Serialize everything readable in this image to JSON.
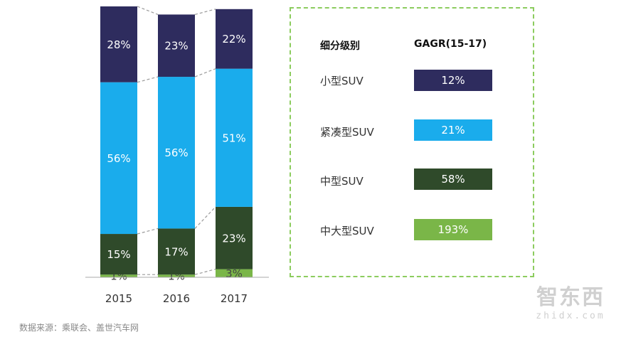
{
  "chart_data": {
    "type": "bar",
    "stacked": true,
    "percent": true,
    "categories": [
      "2015",
      "2016",
      "2017"
    ],
    "series": [
      {
        "name": "中大型SUV",
        "values": [
          1,
          1,
          3
        ],
        "labels": [
          "1%",
          "1%",
          "3%"
        ],
        "color": "#7ab648"
      },
      {
        "name": "中型SUV",
        "values": [
          15,
          17,
          23
        ],
        "labels": [
          "15%",
          "17%",
          "23%"
        ],
        "color": "#2f4a2a"
      },
      {
        "name": "紧凑型SUV",
        "values": [
          56,
          56,
          51
        ],
        "labels": [
          "56%",
          "56%",
          "51%"
        ],
        "color": "#1aacec"
      },
      {
        "name": "小型SUV",
        "values": [
          28,
          23,
          22
        ],
        "labels": [
          "28%",
          "23%",
          "22%"
        ],
        "color": "#2e2c5e"
      }
    ],
    "ylim": [
      0,
      100
    ],
    "grid": false,
    "legend_position": "right"
  },
  "legend": {
    "header_segment": "细分级别",
    "header_cagr": "GAGR(15-17)",
    "rows": [
      {
        "label": "小型SUV",
        "cagr": "12%",
        "color": "#2e2c5e"
      },
      {
        "label": "紧凑型SUV",
        "cagr": "21%",
        "color": "#1aacec"
      },
      {
        "label": "中型SUV",
        "cagr": "58%",
        "color": "#2f4a2a"
      },
      {
        "label": "中大型SUV",
        "cagr": "193%",
        "color": "#7ab648"
      }
    ]
  },
  "source": "数据来源：乘联会、盖世汽车网",
  "watermark": {
    "cn": "智东西",
    "en": "zhidx.com"
  }
}
